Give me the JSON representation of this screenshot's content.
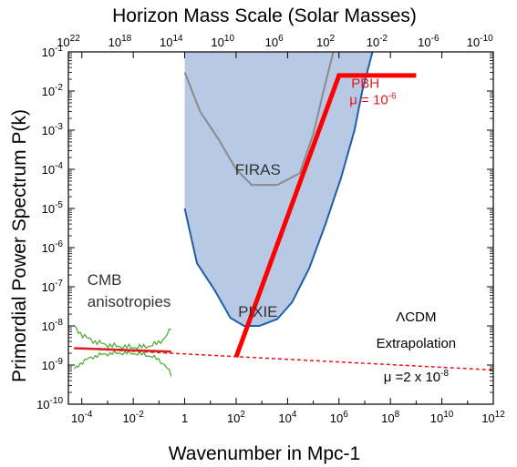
{
  "chart_data": {
    "type": "line",
    "title": "Horizon Mass Scale (Solar Masses)",
    "xlabel": "Wavenumber in Mpc-1",
    "ylabel": "Primordial Power Spectrum P(k)",
    "x_scale": "log",
    "y_scale": "log",
    "xlim": [
      3e-05,
      1000000000000.0
    ],
    "ylim": [
      1e-10,
      0.1
    ],
    "x_ticks": [
      {
        "v": 0.0001,
        "b": "10",
        "e": "-4"
      },
      {
        "v": 0.01,
        "b": "10",
        "e": "-2"
      },
      {
        "v": 1,
        "b": "1",
        "e": ""
      },
      {
        "v": 100,
        "b": "10",
        "e": "2"
      },
      {
        "v": 10000,
        "b": "10",
        "e": "4"
      },
      {
        "v": 1000000,
        "b": "10",
        "e": "6"
      },
      {
        "v": 100000000,
        "b": "10",
        "e": "8"
      },
      {
        "v": 10000000000,
        "b": "10",
        "e": "10"
      },
      {
        "v": 1000000000000,
        "b": "10",
        "e": "12"
      }
    ],
    "y_ticks": [
      {
        "v": 1e-10,
        "b": "10",
        "e": "-10"
      },
      {
        "v": 1e-09,
        "b": "10",
        "e": "-9"
      },
      {
        "v": 1e-08,
        "b": "10",
        "e": "-8"
      },
      {
        "v": 1e-07,
        "b": "10",
        "e": "-7"
      },
      {
        "v": 1e-06,
        "b": "10",
        "e": "-6"
      },
      {
        "v": 1e-05,
        "b": "10",
        "e": "-5"
      },
      {
        "v": 0.0001,
        "b": "10",
        "e": "-4"
      },
      {
        "v": 0.001,
        "b": "10",
        "e": "-3"
      },
      {
        "v": 0.01,
        "b": "10",
        "e": "-2"
      },
      {
        "v": 0.1,
        "b": "10",
        "e": "-1"
      }
    ],
    "top_ticks": [
      {
        "v": 1e+22,
        "b": "10",
        "e": "22"
      },
      {
        "v": 1e+18,
        "b": "10",
        "e": "18"
      },
      {
        "v": 100000000000000.0,
        "b": "10",
        "e": "14"
      },
      {
        "v": 10000000000.0,
        "b": "10",
        "e": "10"
      },
      {
        "v": 1000000.0,
        "b": "10",
        "e": "6"
      },
      {
        "v": 100.0,
        "b": "10",
        "e": "2"
      },
      {
        "v": 0.01,
        "b": "10",
        "e": "-2"
      },
      {
        "v": 1e-06,
        "b": "10",
        "e": "-6"
      },
      {
        "v": 1e-10,
        "b": "10",
        "e": "-10"
      }
    ],
    "top_tick_positions_k": [
      3e-05,
      0.003,
      0.3,
      30,
      3000,
      300000,
      30000000,
      3000000000,
      300000000000
    ],
    "colors": {
      "pixie_fill": "#b8c9e6",
      "pixie_line": "#1f5fa8",
      "firas_line": "#8a8a8a",
      "pbh": "#ff0000",
      "lcdm": "#e8171b",
      "cmb": "#49a82f",
      "cmb_fit": "#d81e1e"
    },
    "series": [
      {
        "name": "PIXIE",
        "style": "filled-region",
        "points": [
          [
            1,
            1e-05
          ],
          [
            3,
            4e-07
          ],
          [
            15,
            8e-08
          ],
          [
            60,
            1.6e-08
          ],
          [
            200,
            1e-08
          ],
          [
            800,
            1e-08
          ],
          [
            4000,
            1.5e-08
          ],
          [
            15000,
            4e-08
          ],
          [
            70000,
            3e-07
          ],
          [
            300000,
            4e-06
          ],
          [
            1200000,
            6e-05
          ],
          [
            4000000,
            0.001
          ],
          [
            8000000,
            0.01
          ],
          [
            20000000,
            0.1
          ]
        ],
        "fill_top": 0.1,
        "fill_left_k": 1
      },
      {
        "name": "FIRAS",
        "points": [
          [
            1,
            0.03
          ],
          [
            4,
            0.003
          ],
          [
            20,
            0.0006
          ],
          [
            100,
            0.0001
          ],
          [
            400,
            4e-05
          ],
          [
            4000,
            4e-05
          ],
          [
            30000,
            8e-05
          ],
          [
            100000,
            0.0008
          ],
          [
            250000,
            0.01
          ],
          [
            600000,
            0.1
          ]
        ]
      },
      {
        "name": "PBH",
        "points": [
          [
            100,
            1.6e-09
          ],
          [
            1000000,
            0.025
          ],
          [
            1000000000,
            0.025
          ]
        ]
      },
      {
        "name": "ΛCDM Extrapolation",
        "style": "dashed",
        "points": [
          [
            5e-05,
            2.7e-09
          ],
          [
            1000000000000.0,
            7.5e-10
          ]
        ]
      }
    ],
    "cmb": {
      "name": "CMB anisotropies",
      "center": [
        [
          5e-05,
          2.7e-09
        ],
        [
          0.3,
          2.2e-09
        ]
      ]
    },
    "annotations": {
      "pbh_label": "PBH",
      "pbh_mu": "μ = 10",
      "pbh_mu_exp": "-6",
      "firas_label": "FIRAS",
      "pixie_label": "PIXIE",
      "cmb_label_1": "CMB",
      "cmb_label_2": "anisotropies",
      "lcdm_label_1": "ΛCDM",
      "lcdm_label_2": "Extrapolation",
      "lcdm_mu": "μ =2 x 10",
      "lcdm_mu_exp": "-8"
    }
  }
}
